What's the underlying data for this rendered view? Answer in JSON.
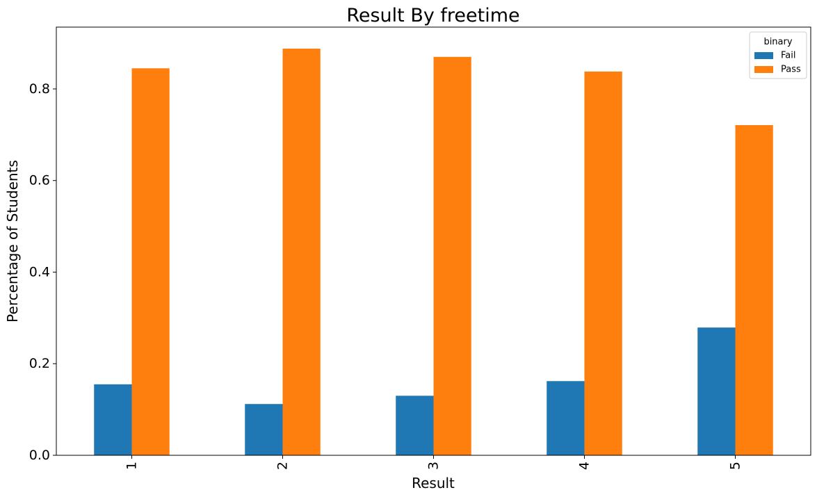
{
  "chart_data": {
    "type": "bar",
    "title": "Result By freetime",
    "xlabel": "Result",
    "ylabel": "Percentage of Students",
    "categories": [
      "1",
      "2",
      "3",
      "4",
      "5"
    ],
    "series": [
      {
        "name": "Fail",
        "color": "#1f77b4",
        "values": [
          0.155,
          0.112,
          0.13,
          0.162,
          0.279
        ]
      },
      {
        "name": "Pass",
        "color": "#ff7f0e",
        "values": [
          0.845,
          0.888,
          0.87,
          0.838,
          0.721
        ]
      }
    ],
    "ylim": [
      0,
      0.935
    ],
    "yticks": [
      0.0,
      0.2,
      0.4,
      0.6,
      0.8
    ],
    "ytick_labels": [
      "0.0",
      "0.2",
      "0.4",
      "0.6",
      "0.8"
    ],
    "legend": {
      "title": "binary",
      "position": "top-right"
    },
    "grid": false
  }
}
